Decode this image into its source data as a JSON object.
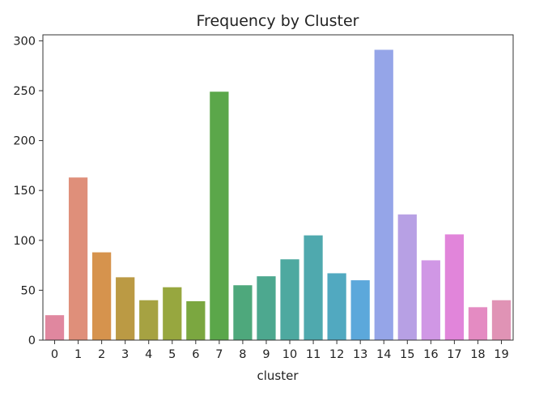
{
  "chart_data": {
    "type": "bar",
    "title": "Frequency by Cluster",
    "xlabel": "cluster",
    "ylabel": "",
    "categories": [
      "0",
      "1",
      "2",
      "3",
      "4",
      "5",
      "6",
      "7",
      "8",
      "9",
      "10",
      "11",
      "12",
      "13",
      "14",
      "15",
      "16",
      "17",
      "18",
      "19"
    ],
    "values": [
      25,
      163,
      88,
      63,
      40,
      53,
      39,
      249,
      55,
      64,
      81,
      105,
      67,
      60,
      291,
      126,
      80,
      106,
      33,
      40
    ],
    "colors": [
      "#e0879f",
      "#df8f7a",
      "#d6934d",
      "#bb9a44",
      "#a6a242",
      "#97a73f",
      "#7ba740",
      "#5ba74a",
      "#4ea87c",
      "#4da88f",
      "#4ea9a0",
      "#4fa9ae",
      "#51a9c0",
      "#5ca8db",
      "#95a5e8",
      "#b7a0e4",
      "#d097e5",
      "#e185da",
      "#e48bc2",
      "#e093b5"
    ],
    "ylim": [
      0,
      306
    ],
    "yticks": [
      0,
      50,
      100,
      150,
      200,
      250,
      300
    ],
    "grid": false,
    "legend": "none"
  }
}
